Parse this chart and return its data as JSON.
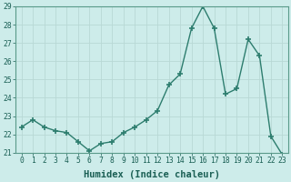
{
  "x": [
    0,
    1,
    2,
    3,
    4,
    5,
    6,
    7,
    8,
    9,
    10,
    11,
    12,
    13,
    14,
    15,
    16,
    17,
    18,
    19,
    20,
    21,
    22,
    23
  ],
  "y": [
    22.4,
    22.8,
    22.4,
    22.2,
    22.1,
    21.6,
    21.1,
    21.5,
    21.6,
    22.1,
    22.4,
    22.8,
    23.3,
    24.7,
    25.3,
    27.8,
    29.0,
    27.8,
    24.2,
    24.5,
    27.2,
    26.3,
    21.9,
    20.9
  ],
  "line_color": "#2d7d6e",
  "marker": "+",
  "marker_size": 4,
  "marker_lw": 1.2,
  "bg_color": "#cdecea",
  "grid_color": "#b8d8d5",
  "xlabel": "Humidex (Indice chaleur)",
  "ylim": [
    21,
    29
  ],
  "yticks": [
    21,
    22,
    23,
    24,
    25,
    26,
    27,
    28,
    29
  ],
  "xticks": [
    0,
    1,
    2,
    3,
    4,
    5,
    6,
    7,
    8,
    9,
    10,
    11,
    12,
    13,
    14,
    15,
    16,
    17,
    18,
    19,
    20,
    21,
    22,
    23
  ],
  "tick_label_fontsize": 5.8,
  "xlabel_fontsize": 7.5,
  "line_width": 1.0
}
